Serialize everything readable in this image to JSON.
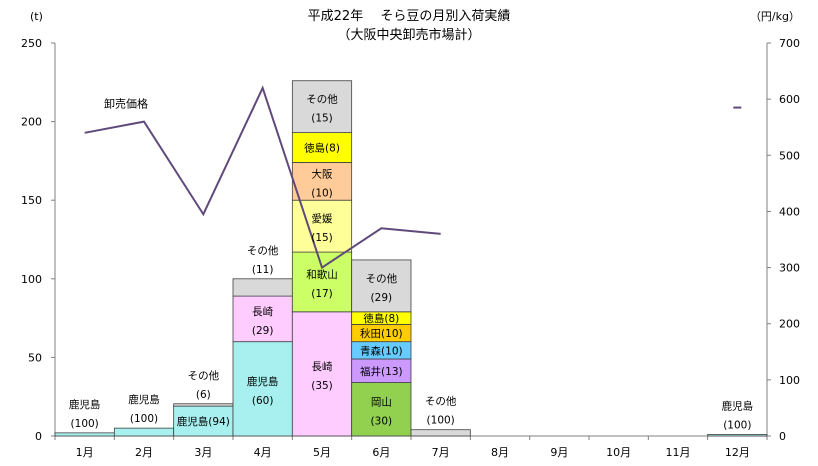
{
  "chart_data": {
    "type": "bar",
    "stacked": true,
    "title": "平成22年　 そら豆の月別入荷実績",
    "subtitle": "（大阪中央卸売市場計）",
    "left_unit": "(t)",
    "right_unit": "（円/kg）",
    "ylim": [
      0,
      250
    ],
    "yticks": [
      0,
      50,
      100,
      150,
      200,
      250
    ],
    "y2lim": [
      0,
      700
    ],
    "y2ticks": [
      0,
      100,
      200,
      300,
      400,
      500,
      600,
      700
    ],
    "categories": [
      "1月",
      "2月",
      "3月",
      "4月",
      "5月",
      "6月",
      "7月",
      "8月",
      "9月",
      "10月",
      "11月",
      "12月"
    ],
    "bar_segments": [
      {
        "month": 0,
        "base": 0,
        "value": 2,
        "color": "#a8f0f0",
        "label_name": "鹿児島",
        "label_pct": "(100)",
        "label_outside": true
      },
      {
        "month": 1,
        "base": 0,
        "value": 5,
        "color": "#a8f0f0",
        "label_name": "鹿児島",
        "label_pct": "(100)",
        "label_outside": true
      },
      {
        "month": 2,
        "base": 0,
        "value": 19,
        "color": "#a8f0f0",
        "label_name": "鹿児島(94)",
        "label_pct": "",
        "label_outside": false
      },
      {
        "month": 2,
        "base": 19,
        "value": 1.5,
        "color": "#d9d9d9",
        "label_name": "その他",
        "label_pct": "(6)",
        "label_outside": true
      },
      {
        "month": 3,
        "base": 0,
        "value": 60,
        "color": "#a8f0f0",
        "label_name": "鹿児島",
        "label_pct": "(60)",
        "label_outside": false
      },
      {
        "month": 3,
        "base": 60,
        "value": 29,
        "color": "#ffccff",
        "label_name": "長崎",
        "label_pct": "(29)",
        "label_outside": false
      },
      {
        "month": 3,
        "base": 89,
        "value": 11,
        "color": "#d9d9d9",
        "label_name": "その他",
        "label_pct": "(11)",
        "label_outside": true
      },
      {
        "month": 4,
        "base": 0,
        "value": 79,
        "color": "#ffccff",
        "label_name": "長崎",
        "label_pct": "(35)",
        "label_outside": false
      },
      {
        "month": 4,
        "base": 79,
        "value": 38,
        "color": "#ccff66",
        "label_name": "和歌山",
        "label_pct": "(17)",
        "label_outside": false
      },
      {
        "month": 4,
        "base": 117,
        "value": 33,
        "color": "#ffff99",
        "label_name": "愛媛",
        "label_pct": "(15)",
        "label_outside": false
      },
      {
        "month": 4,
        "base": 150,
        "value": 24,
        "color": "#ffcc99",
        "label_name": "大阪",
        "label_pct": "(10)",
        "label_outside": false
      },
      {
        "month": 4,
        "base": 174,
        "value": 19,
        "color": "#ffff00",
        "label_name": "徳島(8)",
        "label_pct": "",
        "label_outside": false
      },
      {
        "month": 4,
        "base": 193,
        "value": 33,
        "color": "#d9d9d9",
        "label_name": "その他",
        "label_pct": "(15)",
        "label_outside": false
      },
      {
        "month": 5,
        "base": 0,
        "value": 34,
        "color": "#92d050",
        "label_name": "岡山",
        "label_pct": "(30)",
        "label_outside": false
      },
      {
        "month": 5,
        "base": 34,
        "value": 15,
        "color": "#cc99ff",
        "label_name": "福井(13)",
        "label_pct": "",
        "label_outside": false
      },
      {
        "month": 5,
        "base": 49,
        "value": 11,
        "color": "#66ccff",
        "label_name": "青森(10)",
        "label_pct": "",
        "label_outside": false
      },
      {
        "month": 5,
        "base": 60,
        "value": 11,
        "color": "#ffcc00",
        "label_name": "秋田(10)",
        "label_pct": "",
        "label_outside": false
      },
      {
        "month": 5,
        "base": 71,
        "value": 8,
        "color": "#ffff00",
        "label_name": "徳島(8)",
        "label_pct": "",
        "label_outside": false
      },
      {
        "month": 5,
        "base": 79,
        "value": 33,
        "color": "#d9d9d9",
        "label_name": "その他",
        "label_pct": "(29)",
        "label_outside": false
      },
      {
        "month": 6,
        "base": 0,
        "value": 4,
        "color": "#d9d9d9",
        "label_name": "その他",
        "label_pct": "(100)",
        "label_outside": true
      },
      {
        "month": 11,
        "base": 0,
        "value": 1,
        "color": "#a8f0f0",
        "label_name": "鹿児島",
        "label_pct": "(100)",
        "label_outside": true
      }
    ],
    "price_line": {
      "name": "卸売価格",
      "color": "#604a7b",
      "points": [
        {
          "month": 0,
          "value": 540
        },
        {
          "month": 1,
          "value": 560
        },
        {
          "month": 2,
          "value": 395
        },
        {
          "month": 3,
          "value": 620
        },
        {
          "month": 4,
          "value": 300
        },
        {
          "month": 5,
          "value": 370
        },
        {
          "month": 6,
          "value": 360
        }
      ],
      "isolated": [
        {
          "month": 11,
          "value": 585
        }
      ]
    }
  }
}
